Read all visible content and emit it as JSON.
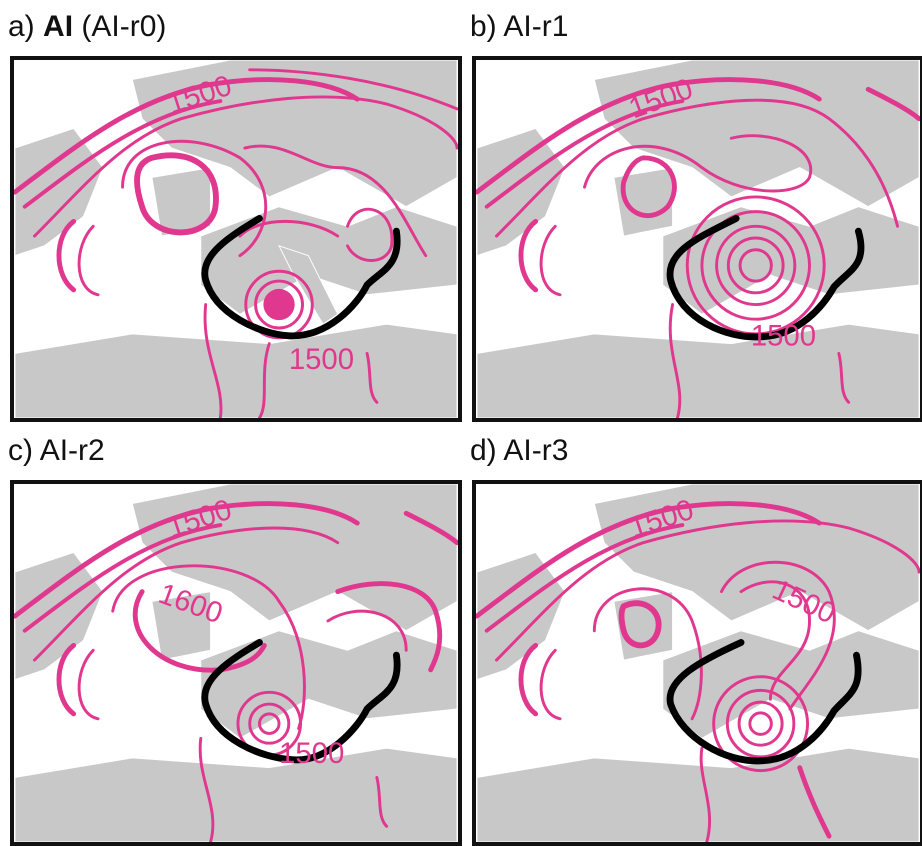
{
  "panels": [
    {
      "id": "a",
      "prefix": "a)",
      "bold": "AI",
      "suffix": "(AI-r0)",
      "labels": [
        {
          "text": "1500"
        },
        {
          "text": "1500"
        }
      ]
    },
    {
      "id": "b",
      "prefix": "b)",
      "bold": "",
      "suffix": "AI-r1",
      "labels": [
        {
          "text": "1500"
        },
        {
          "text": "1500"
        }
      ]
    },
    {
      "id": "c",
      "prefix": "c)",
      "bold": "",
      "suffix": "AI-r2",
      "labels": [
        {
          "text": "1500"
        },
        {
          "text": "1600"
        },
        {
          "text": "1500"
        }
      ]
    },
    {
      "id": "d",
      "prefix": "d)",
      "bold": "",
      "suffix": "AI-r3",
      "labels": [
        {
          "text": "1500"
        },
        {
          "text": "1500"
        }
      ]
    }
  ],
  "colors": {
    "contour": "#e0388e",
    "boundary": "#000000",
    "land": "#c8c8c8",
    "sea": "#ffffff"
  }
}
